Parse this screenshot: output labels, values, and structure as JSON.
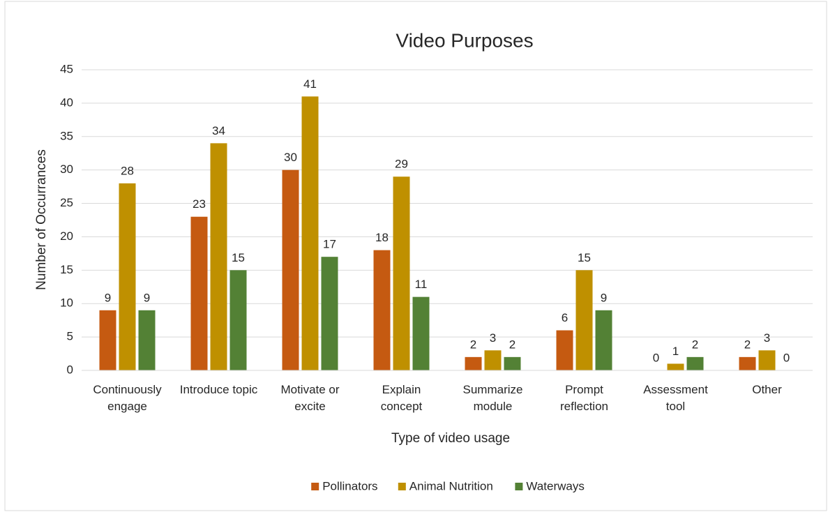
{
  "chart_data": {
    "type": "bar",
    "title": "Video Purposes",
    "x_label": "Type of video usage",
    "y_label": "Number of Occurrances",
    "categories": [
      "Continuously engage",
      "Introduce topic",
      "Motivate or excite",
      "Explain concept",
      "Summarize module",
      "Prompt reflection",
      "Assessment tool",
      "Other"
    ],
    "series": [
      {
        "name": "Pollinators",
        "color": "#c55a11",
        "values": [
          9,
          23,
          30,
          18,
          2,
          6,
          0,
          2
        ]
      },
      {
        "name": "Animal Nutrition",
        "color": "#bf9000",
        "values": [
          28,
          34,
          41,
          29,
          3,
          15,
          1,
          3
        ]
      },
      {
        "name": "Waterways",
        "color": "#538135",
        "values": [
          9,
          15,
          17,
          11,
          2,
          9,
          2,
          0
        ]
      }
    ],
    "ylim": [
      0,
      45
    ],
    "yticks": [
      0,
      5,
      10,
      15,
      20,
      25,
      30,
      35,
      40,
      45
    ],
    "grid": true,
    "legend": "bottom"
  }
}
